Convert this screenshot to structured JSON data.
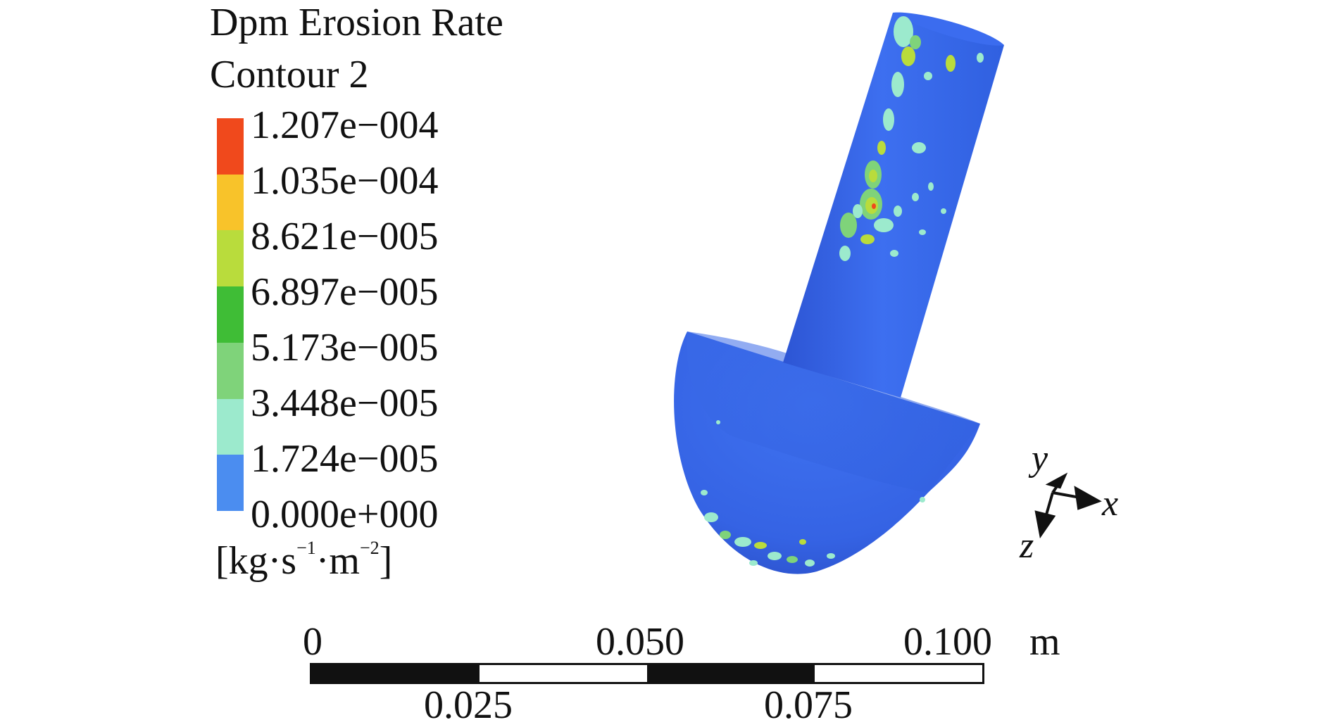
{
  "legend": {
    "title_line1": "Dpm Erosion Rate",
    "title_line2": "Contour 2",
    "ticks": [
      "1.207e−004",
      "1.035e−004",
      "8.621e−005",
      "6.897e−005",
      "5.173e−005",
      "3.448e−005",
      "1.724e−005",
      "0.000e+000"
    ],
    "units_prefix": "[kg·s",
    "units_exp1": "−1",
    "units_mid": "·m",
    "units_exp2": "−2",
    "units_suffix": "]",
    "band_colors": [
      "#f0491c",
      "#f8c32a",
      "#b9dc3c",
      "#3fbd36",
      "#7fd37a",
      "#9ceacd",
      "#4b8df0"
    ]
  },
  "axes": {
    "x": "x",
    "y": "y",
    "z": "z"
  },
  "scale": {
    "labels_top": [
      "0",
      "0.050",
      "0.100"
    ],
    "unit": "m",
    "labels_bottom": [
      "0.025",
      "0.075"
    ]
  },
  "colors": {
    "surface": "#3567e6",
    "surface_light": "#4b7cf2",
    "surface_dark": "#2748c0"
  }
}
